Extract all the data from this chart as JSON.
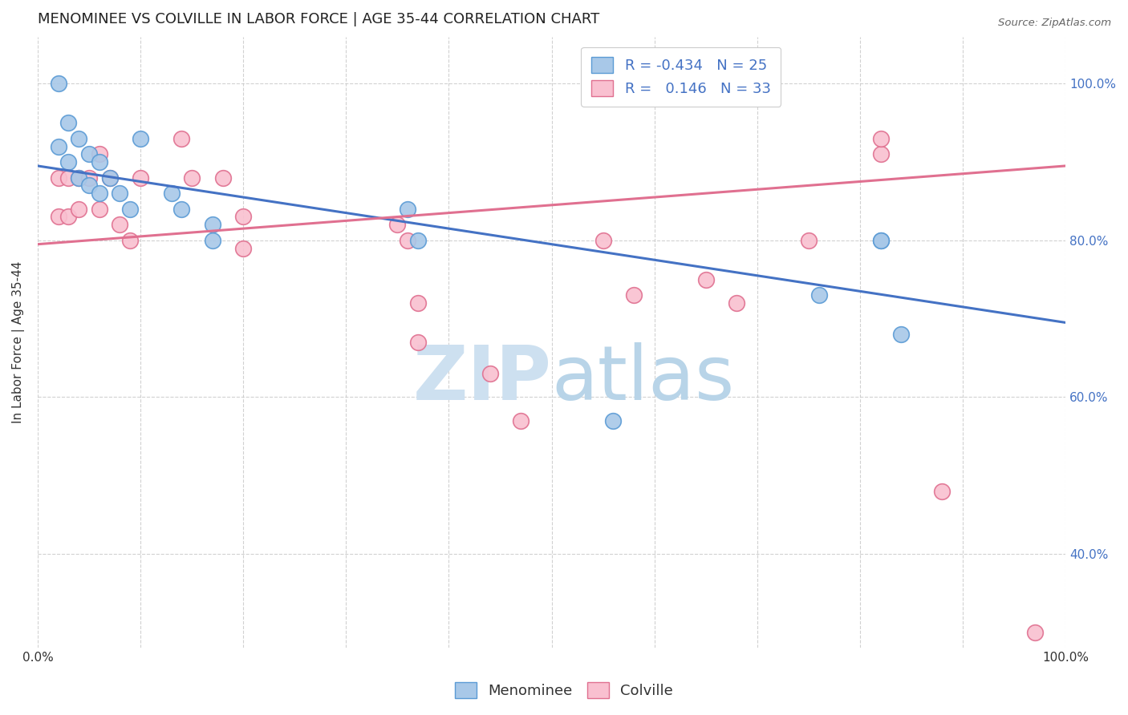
{
  "title": "MENOMINEE VS COLVILLE IN LABOR FORCE | AGE 35-44 CORRELATION CHART",
  "source": "Source: ZipAtlas.com",
  "ylabel": "In Labor Force | Age 35-44",
  "xlim": [
    0.0,
    1.0
  ],
  "ylim": [
    0.28,
    1.06
  ],
  "x_ticks": [
    0.0,
    0.1,
    0.2,
    0.3,
    0.4,
    0.5,
    0.6,
    0.7,
    0.8,
    0.9,
    1.0
  ],
  "y_ticks": [
    0.4,
    0.6,
    0.8,
    1.0
  ],
  "menominee_R": -0.434,
  "menominee_N": 25,
  "colville_R": 0.146,
  "colville_N": 33,
  "menominee_color": "#a8c8e8",
  "colville_color": "#f9c0d0",
  "menominee_edge_color": "#5b9bd5",
  "colville_edge_color": "#e07090",
  "menominee_line_color": "#4472c4",
  "colville_line_color": "#e07090",
  "watermark_zip": "ZIP",
  "watermark_atlas": "atlas",
  "menominee_x": [
    0.02,
    0.02,
    0.03,
    0.03,
    0.04,
    0.04,
    0.05,
    0.05,
    0.06,
    0.06,
    0.07,
    0.08,
    0.09,
    0.1,
    0.13,
    0.14,
    0.17,
    0.17,
    0.36,
    0.37,
    0.56,
    0.76,
    0.82,
    0.82,
    0.84
  ],
  "menominee_y": [
    1.0,
    0.92,
    0.95,
    0.9,
    0.93,
    0.88,
    0.91,
    0.87,
    0.9,
    0.86,
    0.88,
    0.86,
    0.84,
    0.93,
    0.86,
    0.84,
    0.82,
    0.8,
    0.84,
    0.8,
    0.57,
    0.73,
    0.8,
    0.8,
    0.68
  ],
  "colville_x": [
    0.02,
    0.02,
    0.03,
    0.03,
    0.04,
    0.04,
    0.05,
    0.06,
    0.06,
    0.07,
    0.08,
    0.09,
    0.1,
    0.14,
    0.15,
    0.18,
    0.2,
    0.2,
    0.35,
    0.36,
    0.37,
    0.37,
    0.44,
    0.47,
    0.55,
    0.58,
    0.65,
    0.68,
    0.75,
    0.82,
    0.82,
    0.88,
    0.97
  ],
  "colville_y": [
    0.88,
    0.83,
    0.88,
    0.83,
    0.88,
    0.84,
    0.88,
    0.91,
    0.84,
    0.88,
    0.82,
    0.8,
    0.88,
    0.93,
    0.88,
    0.88,
    0.83,
    0.79,
    0.82,
    0.8,
    0.72,
    0.67,
    0.63,
    0.57,
    0.8,
    0.73,
    0.75,
    0.72,
    0.8,
    0.91,
    0.93,
    0.48,
    0.3
  ],
  "menominee_trendline_x": [
    0.0,
    1.0
  ],
  "menominee_trendline_y": [
    0.895,
    0.695
  ],
  "colville_trendline_x": [
    0.0,
    1.0
  ],
  "colville_trendline_y": [
    0.795,
    0.895
  ],
  "background_color": "#ffffff",
  "grid_color": "#cccccc",
  "title_fontsize": 13,
  "axis_label_fontsize": 11,
  "tick_fontsize": 11,
  "legend_fontsize": 13,
  "right_tick_color": "#4472c4"
}
